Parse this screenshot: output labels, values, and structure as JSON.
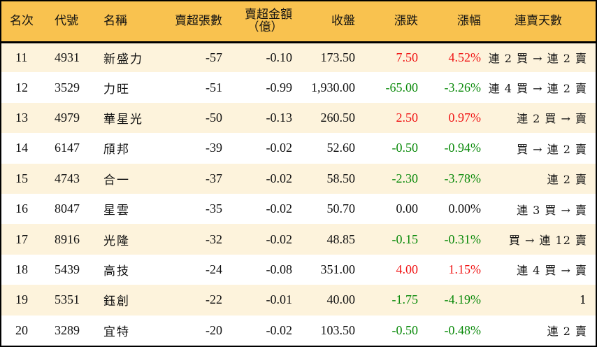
{
  "table": {
    "headers": {
      "rank": "名次",
      "code": "代號",
      "name": "名稱",
      "net_sell_lots": "賣超張數",
      "net_sell_amount_line1": "賣超金額",
      "net_sell_amount_line2": "（億）",
      "close": "收盤",
      "change": "漲跌",
      "change_pct": "漲幅",
      "streak_days": "連賣天數"
    },
    "colors": {
      "header_bg": "#f9c24f",
      "row_odd_bg": "#fdf3dc",
      "row_even_bg": "#ffffff",
      "up": "#f01414",
      "down": "#0a8a0a"
    },
    "rows": [
      {
        "rank": "11",
        "code": "4931",
        "name": "新盛力",
        "net_sell_lots": "-57",
        "net_sell_amount": "-0.10",
        "close": "173.50",
        "change": "7.50",
        "change_pct": "4.52%",
        "direction": "up",
        "streak": "連 2 買 → 連 2 賣"
      },
      {
        "rank": "12",
        "code": "3529",
        "name": "力旺",
        "net_sell_lots": "-51",
        "net_sell_amount": "-0.99",
        "close": "1,930.00",
        "change": "-65.00",
        "change_pct": "-3.26%",
        "direction": "down",
        "streak": "連 4 買 → 連 2 賣"
      },
      {
        "rank": "13",
        "code": "4979",
        "name": "華星光",
        "net_sell_lots": "-50",
        "net_sell_amount": "-0.13",
        "close": "260.50",
        "change": "2.50",
        "change_pct": "0.97%",
        "direction": "up",
        "streak": "連 2 買 → 賣"
      },
      {
        "rank": "14",
        "code": "6147",
        "name": "頎邦",
        "net_sell_lots": "-39",
        "net_sell_amount": "-0.02",
        "close": "52.60",
        "change": "-0.50",
        "change_pct": "-0.94%",
        "direction": "down",
        "streak": "買 → 連 2 賣"
      },
      {
        "rank": "15",
        "code": "4743",
        "name": "合一",
        "net_sell_lots": "-37",
        "net_sell_amount": "-0.02",
        "close": "58.50",
        "change": "-2.30",
        "change_pct": "-3.78%",
        "direction": "down",
        "streak": "連 2 賣"
      },
      {
        "rank": "16",
        "code": "8047",
        "name": "星雲",
        "net_sell_lots": "-35",
        "net_sell_amount": "-0.02",
        "close": "50.70",
        "change": "0.00",
        "change_pct": "0.00%",
        "direction": "flat",
        "streak": "連 3 買 → 賣"
      },
      {
        "rank": "17",
        "code": "8916",
        "name": "光隆",
        "net_sell_lots": "-32",
        "net_sell_amount": "-0.02",
        "close": "48.85",
        "change": "-0.15",
        "change_pct": "-0.31%",
        "direction": "down",
        "streak": "買 → 連 12 賣"
      },
      {
        "rank": "18",
        "code": "5439",
        "name": "高技",
        "net_sell_lots": "-24",
        "net_sell_amount": "-0.08",
        "close": "351.00",
        "change": "4.00",
        "change_pct": "1.15%",
        "direction": "up",
        "streak": "連 4 買 → 賣"
      },
      {
        "rank": "19",
        "code": "5351",
        "name": "鈺創",
        "net_sell_lots": "-22",
        "net_sell_amount": "-0.01",
        "close": "40.00",
        "change": "-1.75",
        "change_pct": "-4.19%",
        "direction": "down",
        "streak": "1"
      },
      {
        "rank": "20",
        "code": "3289",
        "name": "宜特",
        "net_sell_lots": "-20",
        "net_sell_amount": "-0.02",
        "close": "103.50",
        "change": "-0.50",
        "change_pct": "-0.48%",
        "direction": "down",
        "streak": "連 2 賣"
      }
    ]
  }
}
